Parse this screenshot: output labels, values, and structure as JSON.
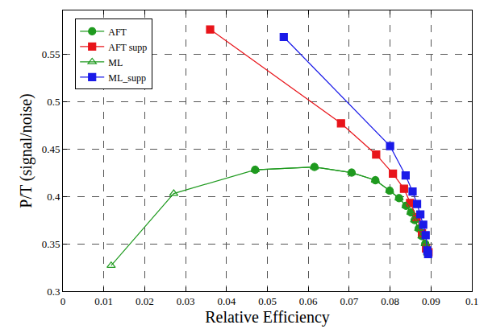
{
  "chart_data": {
    "type": "line",
    "x_label": "Relative Efficiency",
    "y_label": "P/T (signal/noise)",
    "xlim": [
      0,
      0.1
    ],
    "ylim": [
      0.3,
      0.596
    ],
    "xticks": [
      0,
      0.01,
      0.02,
      0.03,
      0.04,
      0.05,
      0.06,
      0.07,
      0.08,
      0.09,
      0.1
    ],
    "yticks": [
      0.3,
      0.35,
      0.4,
      0.45,
      0.5,
      0.55
    ],
    "grid": true,
    "legend": "top-left",
    "series": [
      {
        "name": "AFT",
        "color": "#1f9a1f",
        "marker": "circle",
        "line_style": "solid",
        "x": [
          0.047,
          0.0615,
          0.0706,
          0.0764,
          0.0799,
          0.0822,
          0.0839,
          0.0851,
          0.086,
          0.087,
          0.0878,
          0.0886,
          0.0892
        ],
        "values": [
          0.428,
          0.431,
          0.425,
          0.417,
          0.406,
          0.398,
          0.39,
          0.383,
          0.375,
          0.366,
          0.358,
          0.35,
          0.34
        ]
      },
      {
        "name": "AFT supp",
        "color": "#e8141a",
        "marker": "square",
        "line_style": "solid",
        "x": [
          0.036,
          0.068,
          0.0766,
          0.0807,
          0.0834,
          0.0849,
          0.0865,
          0.0878,
          0.0888,
          0.0894
        ],
        "values": [
          0.576,
          0.477,
          0.444,
          0.424,
          0.408,
          0.393,
          0.378,
          0.361,
          0.345,
          0.341
        ]
      },
      {
        "name": "ML",
        "color": "#1f9a1f",
        "marker": "triangle-open",
        "line_style": "solid",
        "x": [
          0.0118,
          0.0271,
          0.047,
          0.0615,
          0.0706,
          0.0764,
          0.0799,
          0.0822,
          0.0839,
          0.0851,
          0.086,
          0.087,
          0.0878,
          0.0886,
          0.0892
        ],
        "values": [
          0.327,
          0.403,
          0.428,
          0.431,
          0.425,
          0.417,
          0.406,
          0.398,
          0.39,
          0.383,
          0.375,
          0.366,
          0.358,
          0.35,
          0.34
        ]
      },
      {
        "name": "ML_supp",
        "color": "#1a1ae8",
        "marker": "square",
        "line_style": "solid",
        "x": [
          0.054,
          0.08,
          0.0838,
          0.0855,
          0.0866,
          0.0874,
          0.0881,
          0.0887,
          0.0891,
          0.0893
        ],
        "values": [
          0.568,
          0.453,
          0.422,
          0.405,
          0.392,
          0.381,
          0.37,
          0.359,
          0.343,
          0.339
        ]
      }
    ]
  }
}
